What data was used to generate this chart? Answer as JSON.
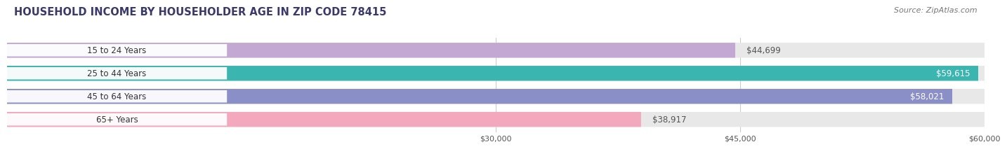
{
  "title": "HOUSEHOLD INCOME BY HOUSEHOLDER AGE IN ZIP CODE 78415",
  "source": "Source: ZipAtlas.com",
  "categories": [
    "15 to 24 Years",
    "25 to 44 Years",
    "45 to 64 Years",
    "65+ Years"
  ],
  "values": [
    44699,
    59615,
    58021,
    38917
  ],
  "bar_colors": [
    "#c4a8d4",
    "#3ab5b0",
    "#8b8fc8",
    "#f4a8be"
  ],
  "bar_bg_color": "#e8e8e8",
  "x_min": 0,
  "x_max": 60000,
  "x_ticks": [
    30000,
    45000,
    60000
  ],
  "x_tick_labels": [
    "$30,000",
    "$45,000",
    "$60,000"
  ],
  "value_labels": [
    "$44,699",
    "$59,615",
    "$58,021",
    "$38,917"
  ],
  "fig_width": 14.06,
  "fig_height": 2.33,
  "bg_color": "#ffffff",
  "title_color": "#3a3a6a",
  "title_fontsize": 10.5,
  "source_fontsize": 8,
  "bar_height": 0.65,
  "y_label_fontsize": 8.5,
  "value_fontsize": 8.5,
  "grid_color": "#cccccc",
  "value_inside_color": "#ffffff",
  "value_outside_color": "#555555"
}
